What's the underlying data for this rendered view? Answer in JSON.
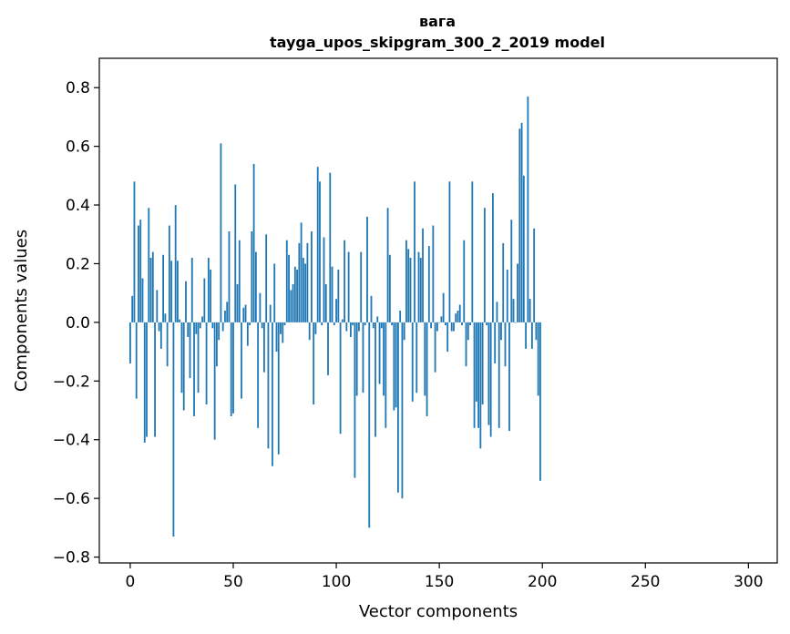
{
  "chart_data": {
    "type": "bar",
    "title": "вага",
    "subtitle": "tayga_upos_skipgram_300_2_2019 model",
    "xlabel": "Vector components",
    "ylabel": "Components values",
    "xlim": [
      -15,
      314
    ],
    "ylim": [
      -0.82,
      0.9
    ],
    "xticks": [
      0,
      50,
      100,
      150,
      200,
      250,
      300
    ],
    "yticks": [
      -0.8,
      -0.6,
      -0.4,
      -0.2,
      0.0,
      0.2,
      0.4,
      0.6,
      0.8
    ],
    "ytick_labels": [
      "−0.8",
      "−0.6",
      "−0.4",
      "−0.2",
      "0.0",
      "0.2",
      "0.4",
      "0.6",
      "0.8"
    ],
    "bar_color": "#1f77b4",
    "grid": false,
    "values": [
      -0.14,
      0.09,
      0.48,
      -0.26,
      0.33,
      0.35,
      0.15,
      -0.41,
      -0.39,
      0.39,
      0.22,
      0.24,
      -0.39,
      0.11,
      -0.03,
      -0.09,
      0.23,
      0.03,
      -0.15,
      0.33,
      0.21,
      -0.73,
      0.4,
      0.21,
      0.01,
      -0.24,
      -0.3,
      0.14,
      -0.05,
      -0.19,
      0.22,
      -0.32,
      -0.04,
      -0.24,
      -0.02,
      0.02,
      0.15,
      -0.28,
      0.22,
      0.18,
      -0.02,
      -0.4,
      -0.15,
      -0.06,
      0.61,
      -0.03,
      0.04,
      0.07,
      0.31,
      -0.32,
      -0.31,
      0.47,
      0.13,
      0.28,
      -0.26,
      0.05,
      0.06,
      -0.08,
      -0.01,
      0.31,
      0.54,
      0.24,
      -0.36,
      0.1,
      -0.02,
      -0.17,
      0.3,
      -0.43,
      0.06,
      -0.49,
      0.2,
      -0.1,
      -0.45,
      -0.04,
      -0.07,
      -0.01,
      0.28,
      0.23,
      0.11,
      0.13,
      0.19,
      0.18,
      0.27,
      0.34,
      0.22,
      0.2,
      0.27,
      -0.06,
      0.31,
      -0.28,
      -0.04,
      0.53,
      0.48,
      -0.01,
      0.29,
      0.13,
      -0.18,
      0.51,
      0.19,
      -0.01,
      0.08,
      0.18,
      -0.38,
      0.01,
      0.28,
      -0.03,
      0.24,
      -0.05,
      -0.01,
      -0.53,
      -0.25,
      -0.03,
      0.24,
      -0.24,
      -0.01,
      0.36,
      -0.7,
      0.09,
      -0.02,
      -0.39,
      0.02,
      -0.21,
      -0.02,
      -0.25,
      -0.36,
      0.39,
      0.23,
      -0.01,
      -0.3,
      -0.29,
      -0.58,
      0.04,
      -0.6,
      -0.06,
      0.28,
      0.25,
      0.22,
      -0.27,
      0.48,
      -0.24,
      0.24,
      0.22,
      0.32,
      -0.25,
      -0.32,
      0.26,
      -0.02,
      0.33,
      -0.17,
      -0.03,
      0.0,
      0.02,
      0.1,
      -0.01,
      -0.1,
      0.48,
      -0.03,
      -0.03,
      0.03,
      0.04,
      0.06,
      -0.01,
      0.28,
      -0.15,
      -0.06,
      -0.01,
      0.48,
      -0.36,
      -0.27,
      -0.36,
      -0.43,
      -0.28,
      0.39,
      -0.01,
      -0.35,
      -0.39,
      0.44,
      -0.14,
      0.07,
      -0.36,
      -0.06,
      0.27,
      -0.15,
      0.18,
      -0.37,
      0.35,
      0.08,
      0.0,
      0.2,
      0.66,
      0.68,
      0.5,
      -0.09,
      0.77,
      0.08,
      -0.09,
      0.32,
      -0.06,
      -0.25,
      -0.54
    ]
  }
}
